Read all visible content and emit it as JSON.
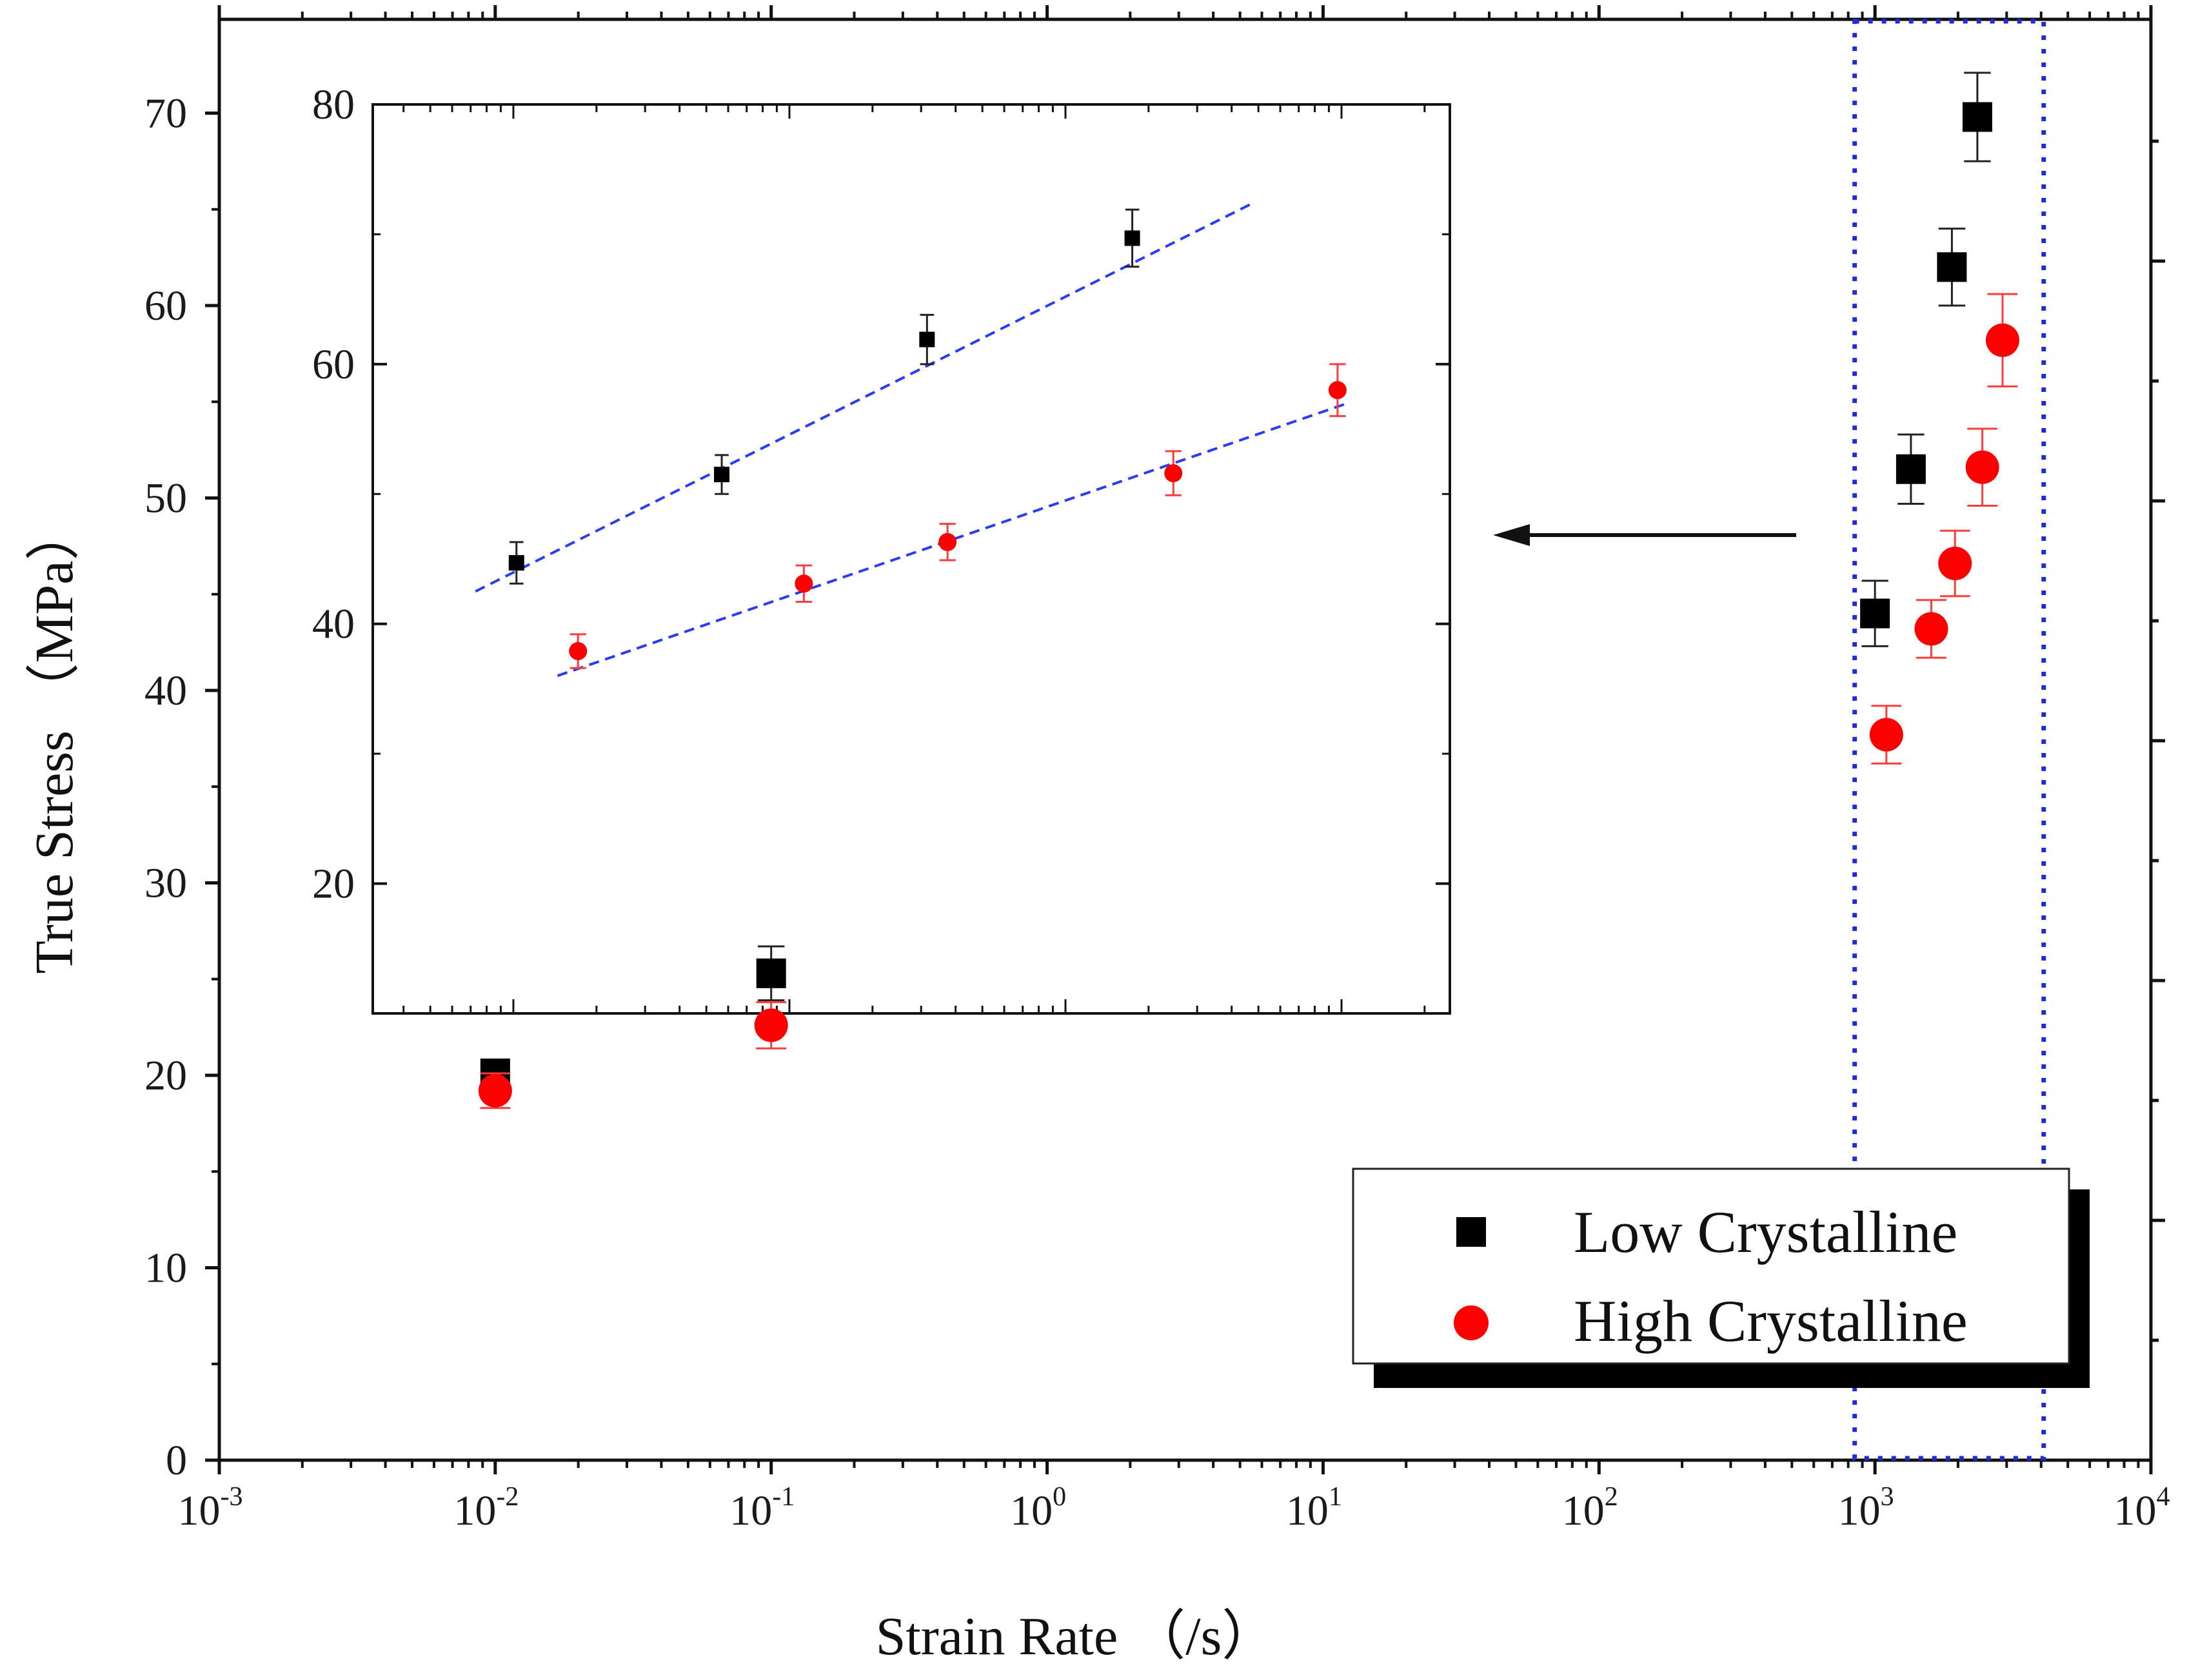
{
  "chart_data": {
    "type": "scatter",
    "xscale": "log",
    "xlabel": "Strain Rate （/s）",
    "ylabel": "True Stress （MPa）",
    "xlim": [
      0.001,
      10000
    ],
    "ylim": [
      0,
      75
    ],
    "xticks": [
      {
        "base": "10",
        "exp": "-3",
        "value": 0.001
      },
      {
        "base": "10",
        "exp": "-2",
        "value": 0.01
      },
      {
        "base": "10",
        "exp": "-1",
        "value": 0.1
      },
      {
        "base": "10",
        "exp": "0",
        "value": 1
      },
      {
        "base": "10",
        "exp": "1",
        "value": 10
      },
      {
        "base": "10",
        "exp": "2",
        "value": 100
      },
      {
        "base": "10",
        "exp": "3",
        "value": 1000
      },
      {
        "base": "10",
        "exp": "4",
        "value": 10000
      }
    ],
    "yticks": [
      "0",
      "10",
      "20",
      "30",
      "40",
      "50",
      "60",
      "70"
    ],
    "legend": {
      "position": "bottom-right",
      "entries": [
        "Low Crystalline",
        "High Crystalline"
      ]
    },
    "series": [
      {
        "name": "Low Crystalline",
        "marker": "square",
        "color": "#000000",
        "points": [
          {
            "x": 0.01,
            "y": 20.1,
            "err": 0.6
          },
          {
            "x": 0.1,
            "y": 25.3,
            "err": 1.4
          },
          {
            "x": 1000,
            "y": 44.0,
            "err": 1.7
          },
          {
            "x": 1350,
            "y": 51.5,
            "err": 1.8
          },
          {
            "x": 1900,
            "y": 62.0,
            "err": 2.0
          },
          {
            "x": 2350,
            "y": 69.8,
            "err": 2.3
          }
        ]
      },
      {
        "name": "High Crystalline",
        "marker": "circle",
        "color": "#ff0000",
        "points": [
          {
            "x": 0.01,
            "y": 19.2,
            "err": 0.9
          },
          {
            "x": 0.1,
            "y": 22.6,
            "err": 1.2
          },
          {
            "x": 1100,
            "y": 37.7,
            "err": 1.5
          },
          {
            "x": 1600,
            "y": 43.2,
            "err": 1.5
          },
          {
            "x": 1950,
            "y": 46.6,
            "err": 1.7
          },
          {
            "x": 2450,
            "y": 51.6,
            "err": 2.0
          },
          {
            "x": 2900,
            "y": 58.2,
            "err": 2.4
          }
        ]
      }
    ],
    "highlight_region": {
      "xrange": [
        800,
        4000
      ],
      "style": "dotted",
      "color": "#1e2bd6"
    },
    "inset": {
      "ylim": [
        10,
        80
      ],
      "yticks": [
        "20",
        "40",
        "60",
        "80"
      ],
      "series": [
        {
          "name": "Low Crystalline",
          "marker": "square",
          "color": "#000000",
          "points": [
            {
              "x": 1,
              "y": 44.7,
              "err": 1.6
            },
            {
              "x": 2,
              "y": 51.5,
              "err": 1.5
            },
            {
              "x": 3,
              "y": 61.9,
              "err": 1.9
            },
            {
              "x": 4,
              "y": 69.7,
              "err": 2.2
            }
          ],
          "fit": {
            "from": [
              0.8,
              42.5
            ],
            "to": [
              4.6,
              72.5
            ],
            "color": "#2a3cf5",
            "style": "dashed"
          }
        },
        {
          "name": "High Crystalline",
          "marker": "circle",
          "color": "#ff0000",
          "points": [
            {
              "x": 1.3,
              "y": 37.9,
              "err": 1.3
            },
            {
              "x": 2.4,
              "y": 43.1,
              "err": 1.4
            },
            {
              "x": 3.1,
              "y": 46.3,
              "err": 1.4
            },
            {
              "x": 4.2,
              "y": 51.6,
              "err": 1.7
            },
            {
              "x": 5.0,
              "y": 58.0,
              "err": 2.0
            }
          ],
          "fit": {
            "from": [
              1.2,
              36.0
            ],
            "to": [
              5.05,
              57.0
            ],
            "color": "#2a3cf5",
            "style": "dashed"
          }
        }
      ]
    }
  }
}
